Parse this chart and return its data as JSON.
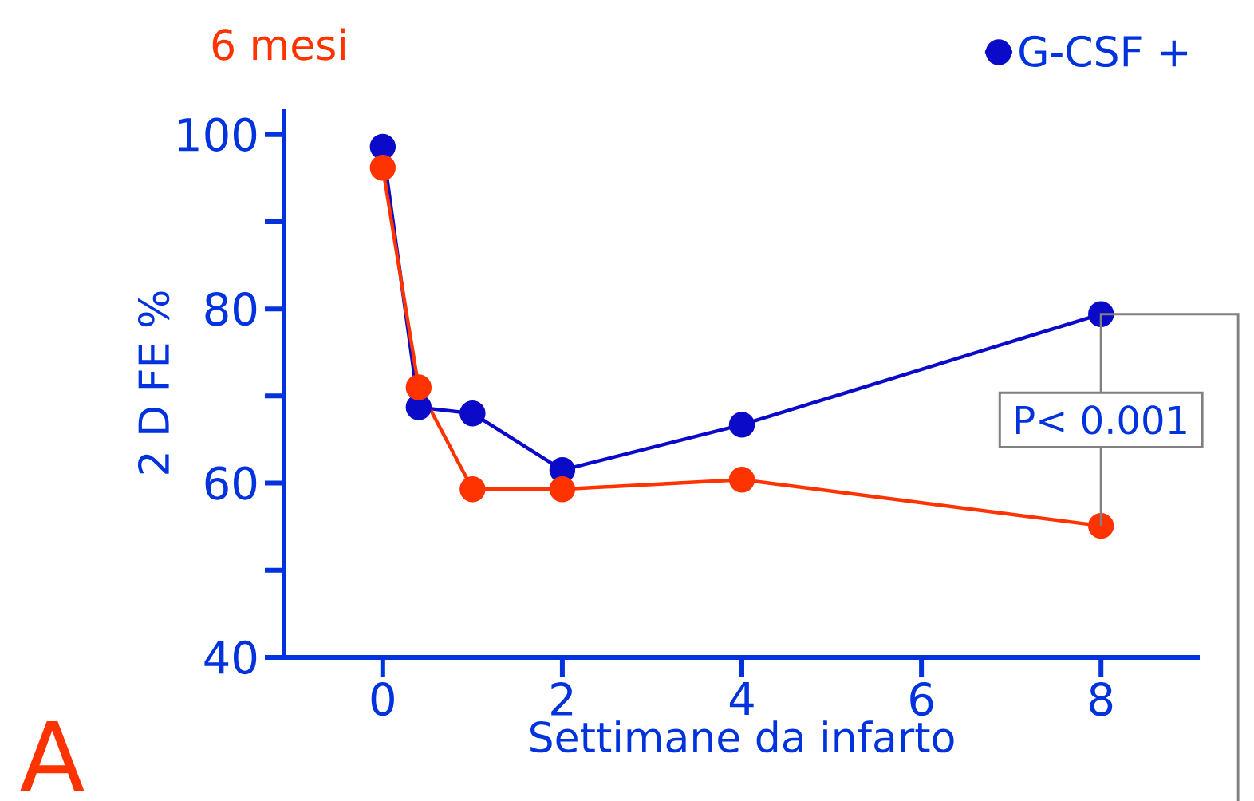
{
  "chart_data": {
    "type": "line",
    "title": "6 mesi",
    "xlabel": "Settimane da infarto",
    "ylabel": "2 D FE %",
    "annotations": [
      "P< 0.001",
      "A"
    ],
    "series": [
      {
        "name": "G-CSF +",
        "color": "#0a0ac8",
        "x": [
          0,
          0.4,
          1,
          2,
          4,
          8
        ],
        "values": [
          98.6,
          68.7,
          68,
          61.5,
          66.7,
          79.4
        ]
      },
      {
        "color": "#ff3300",
        "x": [
          0,
          0.4,
          1,
          2,
          4,
          8
        ],
        "values": [
          96.2,
          71,
          59.3,
          59.3,
          60.4,
          55.1
        ]
      }
    ],
    "xlim": [
      -1.1,
      9.1
    ],
    "ylim": [
      40,
      103
    ],
    "xticks": [
      0,
      2,
      4,
      6,
      8
    ],
    "yticks": [
      40,
      {
        "value": 50,
        "label": null
      },
      60,
      {
        "value": 70,
        "label": null
      },
      80,
      {
        "value": 90,
        "label": null
      },
      100
    ],
    "grid": false,
    "legend": "top right",
    "marker": "circle",
    "line_style": "solid"
  }
}
